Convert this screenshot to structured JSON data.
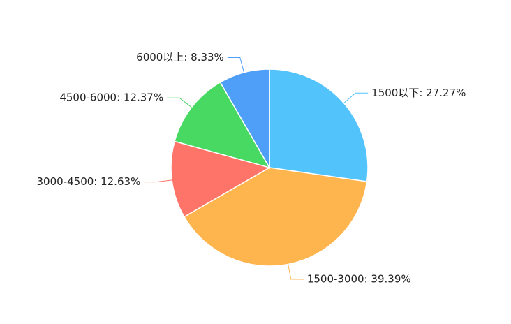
{
  "chart_data": {
    "type": "pie",
    "values": [
      27.27,
      39.39,
      12.63,
      12.37,
      8.33
    ],
    "value_labels": [
      "1500以下: 27.27%",
      "1500-3000: 39.39%",
      "3000-4500: 12.63%",
      "4500-6000: 12.37%",
      "6000以上: 8.33%"
    ],
    "colors": [
      "#53c3fb",
      "#ffb54d",
      "#ff7468",
      "#47d962",
      "#4f9ff9"
    ]
  }
}
